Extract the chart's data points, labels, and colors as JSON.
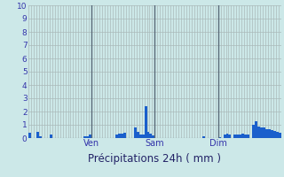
{
  "xlabel": "Précipitations 24h ( mm )",
  "ylim": [
    0,
    10
  ],
  "yticks": [
    0,
    1,
    2,
    3,
    4,
    5,
    6,
    7,
    8,
    9,
    10
  ],
  "background_color": "#cce8e8",
  "bar_color": "#1a5fcc",
  "grid_color": "#aababa",
  "day_line_color": "#5a6a78",
  "day_labels": [
    "Ven",
    "Sam",
    "Dim"
  ],
  "day_positions": [
    24,
    48,
    72
  ],
  "n_bars": 96,
  "bar_width": 1.0,
  "values": [
    0.4,
    0.0,
    0.0,
    0.45,
    0.15,
    0.0,
    0.0,
    0.0,
    0.3,
    0.0,
    0.0,
    0.0,
    0.0,
    0.0,
    0.0,
    0.0,
    0.0,
    0.0,
    0.0,
    0.0,
    0.0,
    0.15,
    0.15,
    0.3,
    0.0,
    0.0,
    0.0,
    0.0,
    0.0,
    0.0,
    0.0,
    0.0,
    0.0,
    0.3,
    0.35,
    0.35,
    0.4,
    0.0,
    0.0,
    0.0,
    0.8,
    0.5,
    0.3,
    0.3,
    2.4,
    0.5,
    0.35,
    0.2,
    0.0,
    0.0,
    0.0,
    0.0,
    0.0,
    0.0,
    0.0,
    0.0,
    0.0,
    0.0,
    0.0,
    0.0,
    0.0,
    0.0,
    0.0,
    0.0,
    0.0,
    0.0,
    0.15,
    0.0,
    0.0,
    0.0,
    0.0,
    0.0,
    0.1,
    0.0,
    0.3,
    0.35,
    0.3,
    0.0,
    0.3,
    0.3,
    0.3,
    0.35,
    0.3,
    0.3,
    0.0,
    1.0,
    1.25,
    0.9,
    0.8,
    0.8,
    0.7,
    0.65,
    0.6,
    0.55,
    0.5,
    0.4
  ],
  "tick_color": "#3333aa",
  "xlabel_color": "#222266",
  "xlabel_fontsize": 8.5,
  "ytick_fontsize": 6.5
}
